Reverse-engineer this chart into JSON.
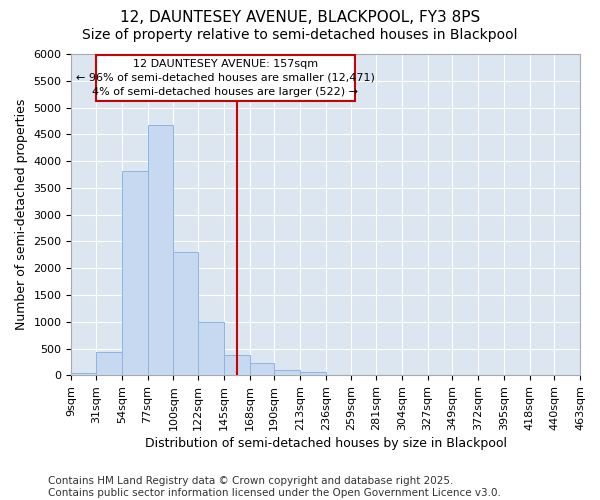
{
  "title1": "12, DAUNTESEY AVENUE, BLACKPOOL, FY3 8PS",
  "title2": "Size of property relative to semi-detached houses in Blackpool",
  "xlabel": "Distribution of semi-detached houses by size in Blackpool",
  "ylabel": "Number of semi-detached properties",
  "footnote": "Contains HM Land Registry data © Crown copyright and database right 2025.\nContains public sector information licensed under the Open Government Licence v3.0.",
  "bin_labels": [
    "9sqm",
    "31sqm",
    "54sqm",
    "77sqm",
    "100sqm",
    "122sqm",
    "145sqm",
    "168sqm",
    "190sqm",
    "213sqm",
    "236sqm",
    "259sqm",
    "281sqm",
    "304sqm",
    "327sqm",
    "349sqm",
    "372sqm",
    "395sqm",
    "418sqm",
    "440sqm",
    "463sqm"
  ],
  "bin_edges": [
    9,
    31,
    54,
    77,
    100,
    122,
    145,
    168,
    190,
    213,
    236,
    259,
    281,
    304,
    327,
    349,
    372,
    395,
    418,
    440,
    463
  ],
  "bar_heights": [
    50,
    440,
    3820,
    4680,
    2310,
    1000,
    380,
    230,
    100,
    70,
    0,
    0,
    0,
    0,
    0,
    0,
    0,
    0,
    0,
    0,
    0
  ],
  "bar_color": "#c6d9f1",
  "bar_edge_color": "#8db4e2",
  "property_line_x": 157,
  "property_line_color": "#cc0000",
  "annotation_line1": "12 DAUNTESEY AVENUE: 157sqm",
  "annotation_line2": "← 96% of semi-detached houses are smaller (12,471)",
  "annotation_line3": "4% of semi-detached houses are larger (522) →",
  "annotation_box_color": "#cc0000",
  "annotation_box_facecolor": "#ffffff",
  "ylim": [
    0,
    6000
  ],
  "yticks": [
    0,
    500,
    1000,
    1500,
    2000,
    2500,
    3000,
    3500,
    4000,
    4500,
    5000,
    5500,
    6000
  ],
  "background_color": "#ffffff",
  "plot_bg_color": "#dce6f1",
  "grid_color": "#ffffff",
  "title1_fontsize": 11,
  "title2_fontsize": 10,
  "axis_label_fontsize": 9,
  "tick_fontsize": 8,
  "footnote_fontsize": 7.5
}
